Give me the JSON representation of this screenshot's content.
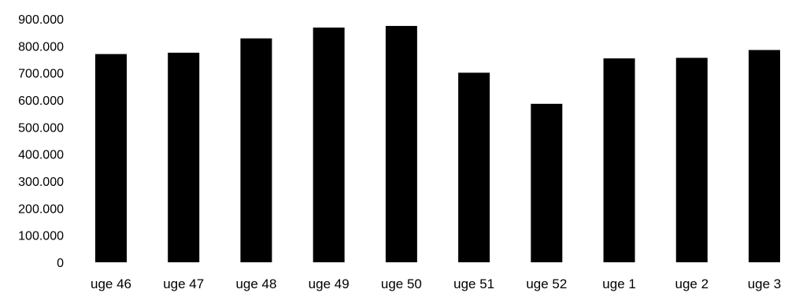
{
  "chart_data": {
    "type": "bar",
    "categories": [
      "uge 46",
      "uge 47",
      "uge 48",
      "uge 49",
      "uge 50",
      "uge 51",
      "uge 52",
      "uge 1",
      "uge 2",
      "uge 3"
    ],
    "series": [
      {
        "values": [
          770000,
          775000,
          828000,
          868000,
          874000,
          701000,
          586000,
          754000,
          756000,
          785000
        ],
        "color": "#000000"
      }
    ],
    "yticks": [
      "0",
      "100.000",
      "200.000",
      "300.000",
      "400.000",
      "500.000",
      "600.000",
      "700.000",
      "800.000",
      "900.000"
    ],
    "ylim": [
      0,
      900000
    ],
    "grid": false,
    "legend": "none"
  }
}
